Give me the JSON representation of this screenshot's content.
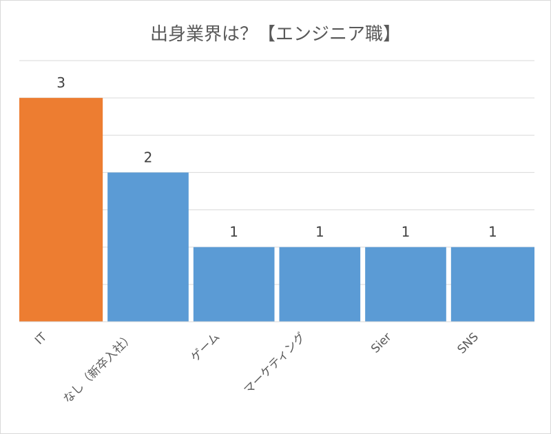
{
  "chart_data": {
    "type": "bar",
    "title": "出身業界は？【エンジニア職】",
    "categories": [
      "IT",
      "なし（新卒入社）",
      "ゲーム",
      "マーケティング",
      "Sier",
      "SNS"
    ],
    "values": [
      3,
      2,
      1,
      1,
      1,
      1
    ],
    "ylim": [
      0,
      3.5
    ],
    "grid": true,
    "colors": {
      "highlight": "#ED7D31",
      "default": "#5B9BD5",
      "grid": "#d9d9d9"
    },
    "highlight_index": 0
  }
}
